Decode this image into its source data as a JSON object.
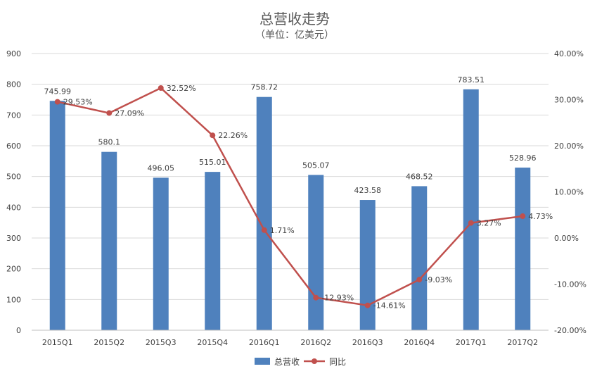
{
  "chart_data": {
    "type": "bar+line",
    "title": "总营收走势",
    "subtitle": "（单位：亿美元）",
    "categories": [
      "2015Q1",
      "2015Q2",
      "2015Q3",
      "2015Q4",
      "2016Q1",
      "2016Q2",
      "2016Q3",
      "2016Q4",
      "2017Q1",
      "2017Q2"
    ],
    "series": [
      {
        "name": "总营收",
        "type": "bar",
        "axis": "left",
        "values": [
          745.99,
          580.1,
          496.05,
          515.01,
          758.72,
          505.07,
          423.58,
          468.52,
          783.51,
          528.96
        ],
        "labels": [
          "745.99",
          "580.1",
          "496.05",
          "515.01",
          "758.72",
          "505.07",
          "423.58",
          "468.52",
          "783.51",
          "528.96"
        ]
      },
      {
        "name": "同比",
        "type": "line",
        "axis": "right",
        "values": [
          29.53,
          27.09,
          32.52,
          22.26,
          1.71,
          -12.93,
          -14.61,
          -9.03,
          3.27,
          4.73
        ],
        "labels": [
          "29.53%",
          "27.09%",
          "32.52%",
          "22.26%",
          "1.71%",
          "-12.93%",
          "-14.61%",
          "-9.03%",
          "3.27%",
          "4.73%"
        ]
      }
    ],
    "y_left": {
      "min": 0,
      "max": 900,
      "step": 100,
      "ticks": [
        "0",
        "100",
        "200",
        "300",
        "400",
        "500",
        "600",
        "700",
        "800",
        "900"
      ]
    },
    "y_right": {
      "min": -20,
      "max": 40,
      "step": 10,
      "ticks": [
        "-20.00%",
        "-10.00%",
        "0.00%",
        "10.00%",
        "20.00%",
        "30.00%",
        "40.00%"
      ]
    },
    "grid": true,
    "legend_position": "bottom",
    "colors": {
      "bar": "#4f81bd",
      "line": "#c0504d",
      "grid": "#d9d9d9",
      "text": "#404040",
      "title": "#595959"
    }
  }
}
